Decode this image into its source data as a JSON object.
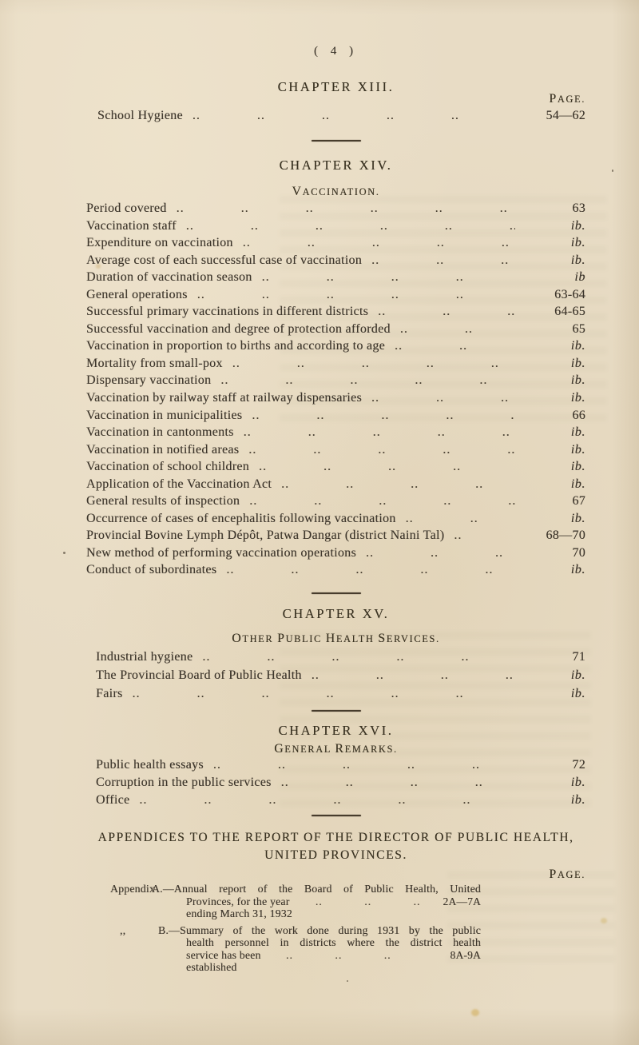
{
  "colors": {
    "paper": "#e8dcc5",
    "ink": "#3c352b"
  },
  "folio": "( 4 )",
  "page_label": "PAGE.",
  "chapter13": {
    "heading": "CHAPTER XIII.",
    "entries": [
      {
        "title": "School Hygiene",
        "page": "54—62"
      }
    ]
  },
  "chapter14": {
    "heading": "CHAPTER XIV.",
    "subheading": "VACCINATION.",
    "entries": [
      {
        "title": "Period covered",
        "page": "63"
      },
      {
        "title": "Vaccination staff",
        "page": "ib."
      },
      {
        "title": "Expenditure on vaccination",
        "page": "ib."
      },
      {
        "title": "Average cost of each successful case of vaccination",
        "page": "ib."
      },
      {
        "title": "Duration of vaccination season",
        "page": "ib"
      },
      {
        "title": "General operations",
        "page": "63-64"
      },
      {
        "title": "Successful primary vaccinations in different districts",
        "page": "64-65"
      },
      {
        "title": "Successful vaccination and degree of protection afforded",
        "page": "65"
      },
      {
        "title": "Vaccination in proportion to births and according to age",
        "page": "ib."
      },
      {
        "title": "Mortality from small-pox",
        "page": "ib."
      },
      {
        "title": "Dispensary vaccination",
        "page": "ib."
      },
      {
        "title": "Vaccination by railway staff at railway dispensaries",
        "page": "ib."
      },
      {
        "title": "Vaccination in municipalities",
        "page": "66"
      },
      {
        "title": "Vaccination in cantonments",
        "page": "ib."
      },
      {
        "title": "Vaccination in notified areas",
        "page": "ib."
      },
      {
        "title": "Vaccination of school children",
        "page": "ib."
      },
      {
        "title": "Application of the Vaccination Act",
        "page": "ib."
      },
      {
        "title": "General results of inspection",
        "page": "67"
      },
      {
        "title": "Occurrence of cases of encephalitis following vaccination",
        "page": "ib."
      },
      {
        "title": "Provincial Bovine Lymph Dépôt, Patwa Dangar (district Naini Tal)",
        "page": "68—70"
      },
      {
        "title": "New method of performing vaccination operations",
        "page": "70"
      },
      {
        "title": "Conduct of subordinates",
        "page": "ib."
      }
    ]
  },
  "chapter15": {
    "heading": "CHAPTER XV.",
    "subheading": "OTHER PUBLIC HEALTH SERVICES.",
    "entries": [
      {
        "title": "Industrial hygiene",
        "page": "71"
      },
      {
        "title": "The Provincial Board of Public Health",
        "page": "ib."
      },
      {
        "title": "Fairs",
        "page": "ib."
      }
    ]
  },
  "chapter16": {
    "heading": "CHAPTER XVI.",
    "subheading": "GENERAL REMARKS.",
    "entries": [
      {
        "title": "Public health essays",
        "page": "72"
      },
      {
        "title": "Corruption in the public services",
        "page": "ib."
      },
      {
        "title": "Office",
        "page": "ib."
      }
    ]
  },
  "appendices": {
    "heading_line1": "APPENDICES TO THE REPORT OF THE DIRECTOR OF PUBLIC HEALTH,",
    "heading_line2": "UNITED PROVINCES.",
    "page_label": "PAGE.",
    "items": [
      {
        "prefix": "Appendix",
        "lines": [
          "A.—Annual report of the Board of Public Health, United",
          "Provinces, for the year ending March 31, 1932"
        ],
        "page": "2A—7A"
      },
      {
        "prefix": ",,",
        "lines": [
          "B.—Summary of the work done during 1931 by the public",
          "health personnel in districts where the district health",
          "service has been established"
        ],
        "page": "8A-9A"
      }
    ]
  }
}
